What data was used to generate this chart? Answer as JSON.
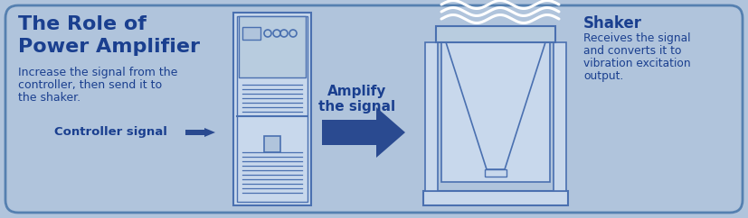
{
  "bg_color": "#b0c4dc",
  "border_color": "#5580b0",
  "dark_blue": "#1a3f8f",
  "line_blue": "#4a70b0",
  "arrow_blue": "#2a4a90",
  "fill_light": "#c8d8ec",
  "fill_mid": "#b8ccdf",
  "title_line1": "The Role of",
  "title_line2": "Power Amplifier",
  "desc_line1": "Increase the signal from the",
  "desc_line2": "controller, then send it to",
  "desc_line3": "the shaker.",
  "ctrl_label": "Controller signal",
  "amplify_line1": "Amplify",
  "amplify_line2": "the signal",
  "shaker_title": "Shaker",
  "shaker_desc1": "Receives the signal",
  "shaker_desc2": "and converts it to",
  "shaker_desc3": "vibration excitation",
  "shaker_desc4": "output.",
  "figsize": [
    8.27,
    2.42
  ],
  "dpi": 100
}
